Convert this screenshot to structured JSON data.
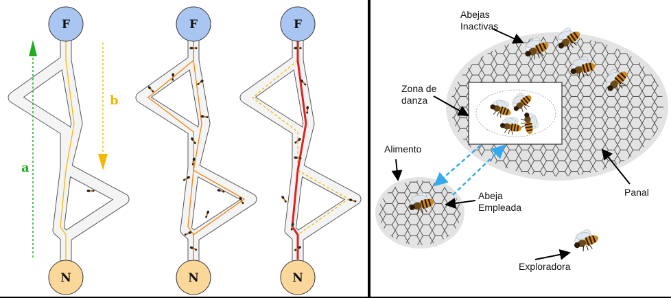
{
  "ants": {
    "node_food": "F",
    "node_nest": "N",
    "arrow_a_label": "a",
    "arrow_b_label": "b",
    "colors": {
      "food": "#a9c6f2",
      "nest": "#fbd79a",
      "path_a": "#22aa22",
      "path_b": "#f5b800",
      "trail": "#f08a1c",
      "best_trail": "#e02020"
    }
  },
  "bees": {
    "inactive_label": [
      "Abejas",
      "Inactivas"
    ],
    "dance_label": [
      "Zona de",
      "danza"
    ],
    "food_label": "Alimento",
    "employed_label": [
      "Abeja",
      "Empleada"
    ],
    "hive_label": "Panal",
    "scout_label": "Exploradora",
    "colors": {
      "honeycomb": "#e3e3e3",
      "recruit_arrows": "#33aaee"
    }
  }
}
